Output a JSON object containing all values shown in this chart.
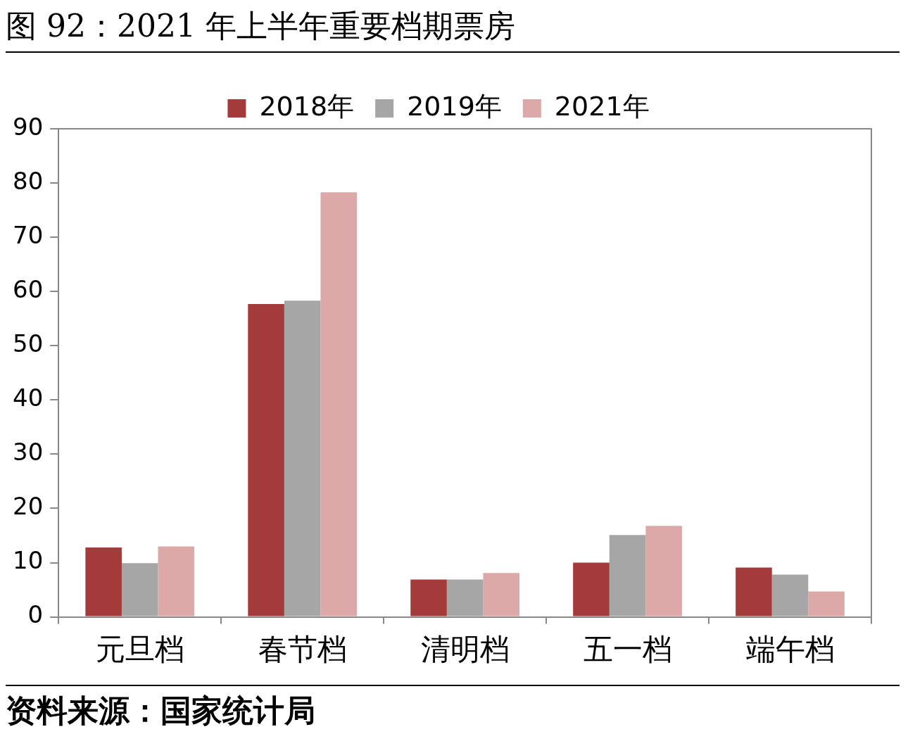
{
  "chart_data": {
    "type": "bar",
    "title": "图 92：2021 年上半年重要档期票房",
    "categories": [
      "元旦档",
      "春节档",
      "清明档",
      "五一档",
      "端午档"
    ],
    "series": [
      {
        "name": "2018年",
        "color": "#a33b3b",
        "values": [
          12.8,
          57.7,
          6.9,
          10.0,
          9.1
        ]
      },
      {
        "name": "2019年",
        "color": "#a6a6a6",
        "values": [
          9.9,
          58.3,
          6.9,
          15.1,
          7.8
        ]
      },
      {
        "name": "2021年",
        "color": "#dca8a8",
        "values": [
          13.0,
          78.3,
          8.1,
          16.8,
          4.7
        ]
      }
    ],
    "ylim": [
      0,
      90
    ],
    "yticks": [
      0,
      10,
      20,
      30,
      40,
      50,
      60,
      70,
      80,
      90
    ],
    "grid": false,
    "legend": "top",
    "annotations": [
      "资料来源：国家统计局"
    ]
  }
}
